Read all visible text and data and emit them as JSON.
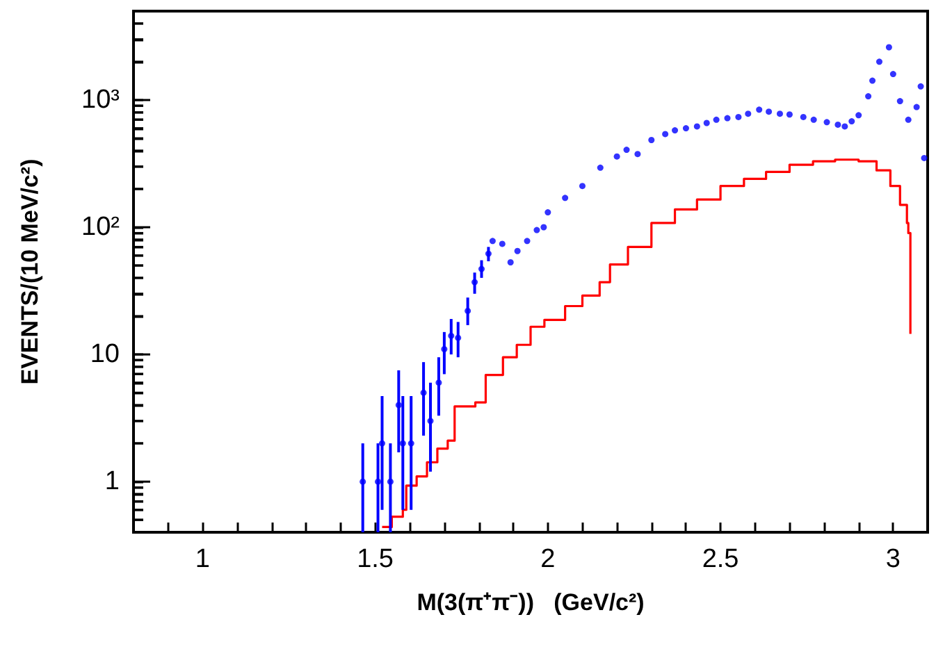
{
  "chart_data": {
    "type": "scatter",
    "xlabel": "M(3(π⁺π⁻))   (GeV/c²)",
    "ylabel": "EVENTS/(10 MeV/c²)",
    "log": "y",
    "grid": false,
    "xlim": [
      0.8,
      3.1
    ],
    "ylim": [
      0.4,
      5000
    ],
    "xticks": [
      {
        "value": 0.9,
        "label": null
      },
      1,
      {
        "value": 1.1,
        "label": null
      },
      {
        "value": 1.2,
        "label": null
      },
      {
        "value": 1.3,
        "label": null
      },
      {
        "value": 1.4,
        "label": null
      },
      1.5,
      {
        "value": 1.6,
        "label": null
      },
      {
        "value": 1.7,
        "label": null
      },
      {
        "value": 1.8,
        "label": null
      },
      {
        "value": 1.9,
        "label": null
      },
      2,
      {
        "value": 2.1,
        "label": null
      },
      {
        "value": 2.2,
        "label": null
      },
      {
        "value": 2.3,
        "label": null
      },
      {
        "value": 2.4,
        "label": null
      },
      2.5,
      {
        "value": 2.6,
        "label": null
      },
      {
        "value": 2.7,
        "label": null
      },
      {
        "value": 2.8,
        "label": null
      },
      {
        "value": 2.9,
        "label": null
      },
      3
    ],
    "yticks": [
      {
        "value": 0.5,
        "label": null
      },
      {
        "value": 0.6,
        "label": null
      },
      {
        "value": 0.7,
        "label": null
      },
      {
        "value": 0.8,
        "label": null
      },
      {
        "value": 0.9,
        "label": null
      },
      1,
      {
        "value": 2,
        "label": null
      },
      {
        "value": 3,
        "label": null
      },
      {
        "value": 4,
        "label": null
      },
      {
        "value": 5,
        "label": null
      },
      {
        "value": 6,
        "label": null
      },
      {
        "value": 7,
        "label": null
      },
      {
        "value": 8,
        "label": null
      },
      {
        "value": 9,
        "label": null
      },
      10,
      {
        "value": 20,
        "label": null
      },
      {
        "value": 30,
        "label": null
      },
      {
        "value": 40,
        "label": null
      },
      {
        "value": 50,
        "label": null
      },
      {
        "value": 60,
        "label": null
      },
      {
        "value": 70,
        "label": null
      },
      {
        "value": 80,
        "label": null
      },
      {
        "value": 90,
        "label": null
      },
      {
        "value": 100,
        "label": "10²"
      },
      {
        "value": 200,
        "label": null
      },
      {
        "value": 300,
        "label": null
      },
      {
        "value": 400,
        "label": null
      },
      {
        "value": 500,
        "label": null
      },
      {
        "value": 600,
        "label": null
      },
      {
        "value": 700,
        "label": null
      },
      {
        "value": 800,
        "label": null
      },
      {
        "value": 900,
        "label": null
      },
      {
        "value": 1000,
        "label": "10³"
      },
      {
        "value": 2000,
        "label": null
      },
      {
        "value": 3000,
        "label": null
      },
      {
        "value": 4000,
        "label": null
      }
    ],
    "series": [
      {
        "type": "step",
        "color": "#ff0000",
        "x": [
          1.52,
          1.548,
          1.58,
          1.59,
          1.62,
          1.65,
          1.68,
          1.71,
          1.73,
          1.79,
          1.82,
          1.87,
          1.91,
          1.95,
          1.99,
          2.05,
          2.1,
          2.15,
          2.18,
          2.232,
          2.3,
          2.368,
          2.432,
          2.5,
          2.568,
          2.632,
          2.7,
          2.768,
          2.832,
          2.9,
          2.952,
          2.992,
          3.02,
          3.04,
          3.044,
          3.05
        ],
        "values": [
          0.44,
          0.53,
          0.6,
          0.93,
          1.1,
          1.42,
          1.82,
          2.1,
          3.9,
          4.2,
          6.9,
          9.5,
          11.9,
          16.5,
          18.7,
          24,
          29,
          37,
          51,
          70,
          108,
          138,
          165,
          211,
          240,
          272,
          310,
          330,
          340,
          330,
          280,
          211,
          150,
          108,
          90,
          14.5
        ]
      },
      {
        "marker": "circle",
        "color": "#0000ff",
        "x": [
          1.464,
          1.508,
          1.52,
          1.544,
          1.568,
          1.58,
          1.604,
          1.64,
          1.66,
          1.684,
          1.7,
          1.72,
          1.74,
          1.768,
          1.788,
          1.808,
          1.828,
          1.84,
          1.868,
          1.892,
          1.912,
          1.94,
          1.968,
          1.988,
          2.0,
          2.05,
          2.1,
          2.152,
          2.2,
          2.228,
          2.26,
          2.3,
          2.34,
          2.368,
          2.4,
          2.432,
          2.46,
          2.488,
          2.52,
          2.552,
          2.58,
          2.612,
          2.64,
          2.672,
          2.7,
          2.74,
          2.77,
          2.808,
          2.84,
          2.86,
          2.88,
          2.9,
          2.928,
          2.94,
          2.96,
          2.988,
          3.0,
          3.02,
          3.044,
          3.068,
          3.08,
          3.09
        ],
        "values": [
          1,
          1,
          2,
          1,
          4,
          2,
          2,
          5,
          3,
          6,
          11,
          14,
          13.5,
          22,
          37,
          47,
          62,
          78,
          74,
          53,
          65,
          78,
          95,
          100,
          131,
          170,
          211,
          294,
          360,
          406,
          376,
          485,
          540,
          578,
          600,
          620,
          660,
          700,
          720,
          735,
          780,
          840,
          810,
          780,
          770,
          735,
          700,
          670,
          640,
          620,
          680,
          760,
          1070,
          1420,
          2000,
          2600,
          1600,
          980,
          700,
          880,
          1280,
          350
        ],
        "errors": [
          [
            0.4,
            2
          ],
          [
            0.4,
            2
          ],
          [
            0.6,
            4.7
          ],
          [
            0.4,
            2
          ],
          [
            1.7,
            7.5
          ],
          [
            0.6,
            4.7
          ],
          [
            0.6,
            4.7
          ],
          [
            2.3,
            8.7
          ],
          [
            1.2,
            6
          ],
          [
            3.3,
            9.5
          ],
          [
            7,
            15
          ],
          [
            10,
            19
          ],
          [
            9.5,
            18
          ],
          [
            17,
            28
          ],
          [
            30,
            44
          ],
          [
            40,
            55
          ],
          [
            54,
            70
          ],
          null,
          null,
          null,
          null,
          null,
          null,
          null,
          null,
          null,
          null,
          null,
          null,
          null,
          null,
          null,
          null,
          null,
          null,
          null,
          null,
          null,
          null,
          null,
          null,
          null,
          null,
          null,
          null,
          null,
          null,
          null,
          null,
          null,
          null,
          null,
          null,
          null,
          null,
          null,
          null,
          null,
          null,
          null,
          null,
          null
        ]
      }
    ]
  }
}
